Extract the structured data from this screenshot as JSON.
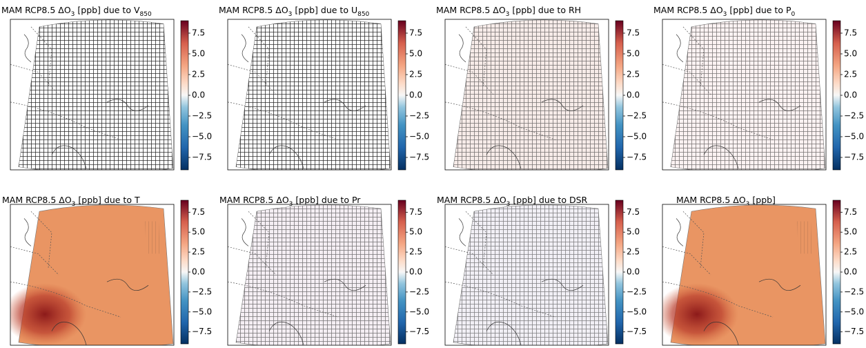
{
  "figure": {
    "colorbar": {
      "clim": [
        -9,
        9
      ],
      "ticks": [
        {
          "value": 7.5,
          "label": "7.5"
        },
        {
          "value": 5,
          "label": "5.0"
        },
        {
          "value": 2.5,
          "label": "2.5"
        },
        {
          "value": 0,
          "label": "0.0"
        },
        {
          "value": -2.5,
          "label": "−2.5"
        },
        {
          "value": -5,
          "label": "−5.0"
        },
        {
          "value": -7.5,
          "label": "−7.5"
        }
      ]
    },
    "panels": [
      {
        "title": [
          {
            "text": "MAM RCP8.5 ΔO"
          },
          {
            "text": "3",
            "sub": true
          },
          {
            "text": " [ppb] due to V"
          },
          {
            "text": "850",
            "sub": true
          }
        ],
        "color": "#ffffff"
      },
      {
        "title": [
          {
            "text": "MAM RCP8.5 ΔO"
          },
          {
            "text": "3",
            "sub": true
          },
          {
            "text": " [ppb] due to U"
          },
          {
            "text": "850",
            "sub": true
          }
        ],
        "color": "#ffffff"
      },
      {
        "title": [
          {
            "text": "MAM RCP8.5 ΔO"
          },
          {
            "text": "3",
            "sub": true
          },
          {
            "text": " [ppb] due to RH"
          }
        ],
        "color": "#f6ebe8"
      },
      {
        "title": [
          {
            "text": "MAM RCP8.5 ΔO"
          },
          {
            "text": "3",
            "sub": true
          },
          {
            "text": " [ppb] due to P"
          },
          {
            "text": "0",
            "sub": true
          }
        ],
        "color": "#fbf2f2"
      },
      {
        "title": [
          {
            "text": "MAM RCP8.5 ΔO"
          },
          {
            "text": "3",
            "sub": true
          },
          {
            "text": " [ppb] due to T"
          }
        ],
        "color": "#e99563"
      },
      {
        "title": [
          {
            "text": "MAM RCP8.5 ΔO"
          },
          {
            "text": "3",
            "sub": true
          },
          {
            "text": " [ppb] due to Pr"
          }
        ],
        "color": "#f4eef3"
      },
      {
        "title": [
          {
            "text": "MAM RCP8.5 ΔO"
          },
          {
            "text": "3",
            "sub": true
          },
          {
            "text": " [ppb] due to DSR"
          }
        ],
        "color": "#f1eff5"
      },
      {
        "title": [
          {
            "text": "MAM RCP8.5 ΔO"
          },
          {
            "text": "3",
            "sub": true
          },
          {
            "text": " [ppb]"
          }
        ],
        "color": "#e99563"
      }
    ]
  }
}
